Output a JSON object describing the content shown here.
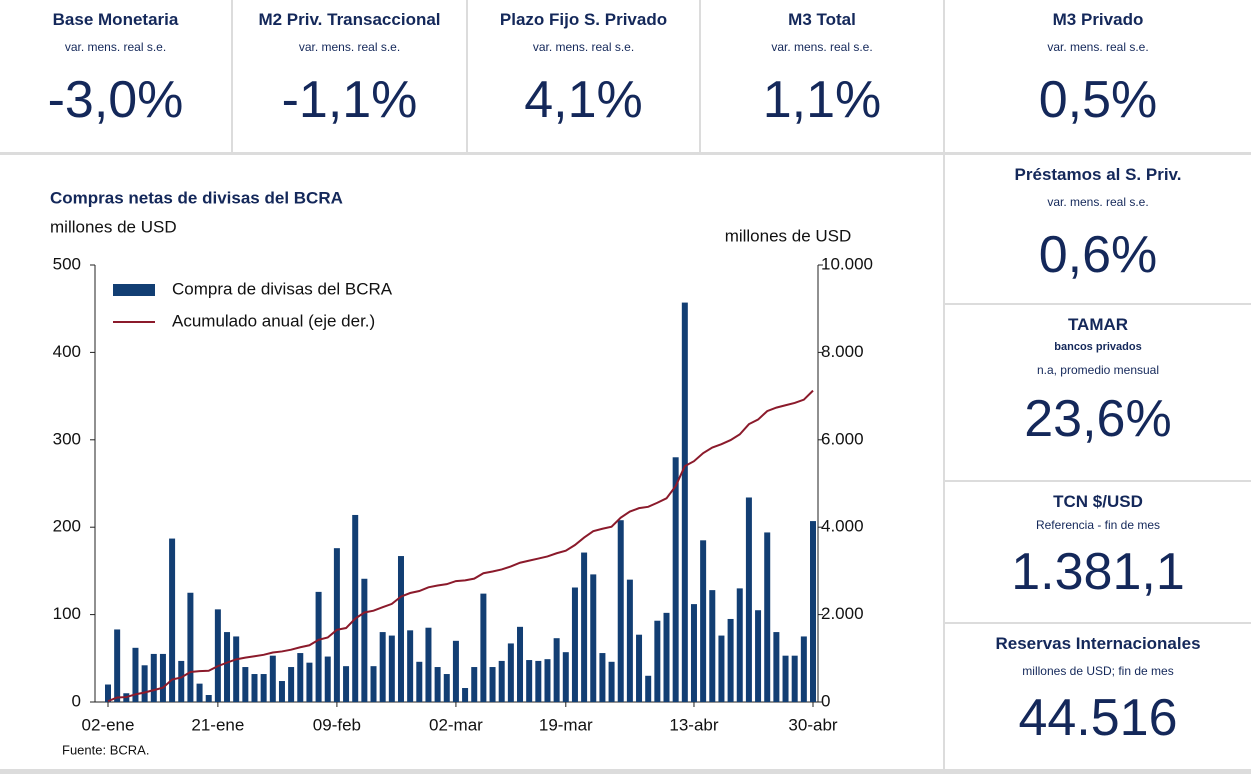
{
  "cards": [
    {
      "title": "Base Monetaria",
      "subtitle": "var. mens. real s.e.",
      "value": "-3,0%"
    },
    {
      "title": "M2 Priv. Transaccional",
      "subtitle": "var. mens. real s.e.",
      "value": "-1,1%"
    },
    {
      "title": "Plazo Fijo S. Privado",
      "subtitle": "var. mens. real s.e.",
      "value": "4,1%"
    },
    {
      "title": "M3 Total",
      "subtitle": "var. mens. real s.e.",
      "value": "1,1%"
    },
    {
      "title": "M3 Privado",
      "subtitle": "var. mens. real s.e.",
      "value": "0,5%"
    },
    {
      "title": "Préstamos al S. Priv.",
      "subtitle": "var. mens. real s.e.",
      "value": "0,6%"
    },
    {
      "title": "TAMAR",
      "detail": "bancos privados",
      "subtitle": "n.a, promedio mensual",
      "value": "23,6%"
    },
    {
      "title": "TCN $/USD",
      "subtitle": "Referencia - fin de mes",
      "value": "1.381,1"
    },
    {
      "title": "Reservas Internacionales",
      "subtitle": "millones de USD; fin de mes",
      "value": "44.516"
    }
  ],
  "chart_data": {
    "type": "bar",
    "title": "Compras netas de divisas del BCRA",
    "y_label": "millones de USD",
    "y2_label": "millones de USD",
    "source": "Fuente: BCRA.",
    "categories": [
      "02-ene",
      null,
      null,
      null,
      null,
      null,
      null,
      null,
      null,
      null,
      null,
      null,
      "21-ene",
      null,
      null,
      null,
      null,
      null,
      null,
      null,
      null,
      null,
      null,
      null,
      null,
      "09-feb",
      null,
      null,
      null,
      null,
      null,
      null,
      null,
      null,
      null,
      null,
      null,
      null,
      "02-mar",
      null,
      null,
      null,
      null,
      null,
      null,
      null,
      null,
      null,
      null,
      null,
      "19-mar",
      null,
      null,
      null,
      null,
      null,
      null,
      null,
      null,
      null,
      null,
      null,
      null,
      null,
      "13-abr",
      null,
      null,
      null,
      null,
      null,
      null,
      null,
      null,
      null,
      null,
      null,
      null,
      "30-abr"
    ],
    "series": [
      {
        "name": "Compra de divisas del BCRA",
        "color": "#123e73",
        "values": [
          20,
          83,
          10,
          62,
          42,
          55,
          55,
          187,
          47,
          125,
          21,
          8,
          106,
          80,
          75,
          40,
          32,
          32,
          53,
          24,
          40,
          56,
          45,
          126,
          52,
          176,
          41,
          214,
          141,
          41,
          80,
          76,
          167,
          82,
          46,
          85,
          40,
          32,
          70,
          16,
          40,
          124,
          40,
          47,
          67,
          86,
          48,
          47,
          49,
          73,
          57,
          131,
          171,
          146,
          56,
          46,
          208,
          140,
          77,
          30,
          93,
          102,
          280,
          457,
          112,
          185,
          128,
          76,
          95,
          130,
          234,
          105,
          194,
          80,
          53,
          53,
          75,
          207
        ]
      },
      {
        "name": "Acumulado anual (eje der.)",
        "color": "#8b1a2b",
        "type": "line",
        "axis": "y2",
        "values": [
          20,
          103,
          113,
          175,
          217,
          272,
          327,
          514,
          561,
          686,
          707,
          715,
          821,
          901,
          976,
          1016,
          1048,
          1080,
          1133,
          1157,
          1197,
          1253,
          1298,
          1424,
          1476,
          1652,
          1693,
          1907,
          2048,
          2089,
          2169,
          2245,
          2412,
          2494,
          2540,
          2625,
          2665,
          2697,
          2767,
          2783,
          2823,
          2947,
          2987,
          3034,
          3101,
          3187,
          3235,
          3282,
          3331,
          3404,
          3461,
          3592,
          3763,
          3909,
          3965,
          4011,
          4219,
          4359,
          4436,
          4466,
          4559,
          4661,
          4941,
          5398,
          5510,
          5695,
          5823,
          5899,
          5994,
          6124,
          6358,
          6463,
          6657,
          6737,
          6790,
          6843,
          6918,
          7125
        ]
      }
    ],
    "ylim": [
      0,
      500
    ],
    "yticks": [
      0,
      100,
      200,
      300,
      400,
      500
    ],
    "y2lim": [
      0,
      10000
    ],
    "y2ticks": [
      0,
      {
        "value": 2000,
        "label": "2.000"
      },
      {
        "value": 4000,
        "label": "4.000"
      },
      {
        "value": 6000,
        "label": "6.000"
      },
      {
        "value": 8000,
        "label": "8.000"
      },
      {
        "value": 10000,
        "label": "10.000"
      }
    ],
    "legend": "top-left"
  }
}
